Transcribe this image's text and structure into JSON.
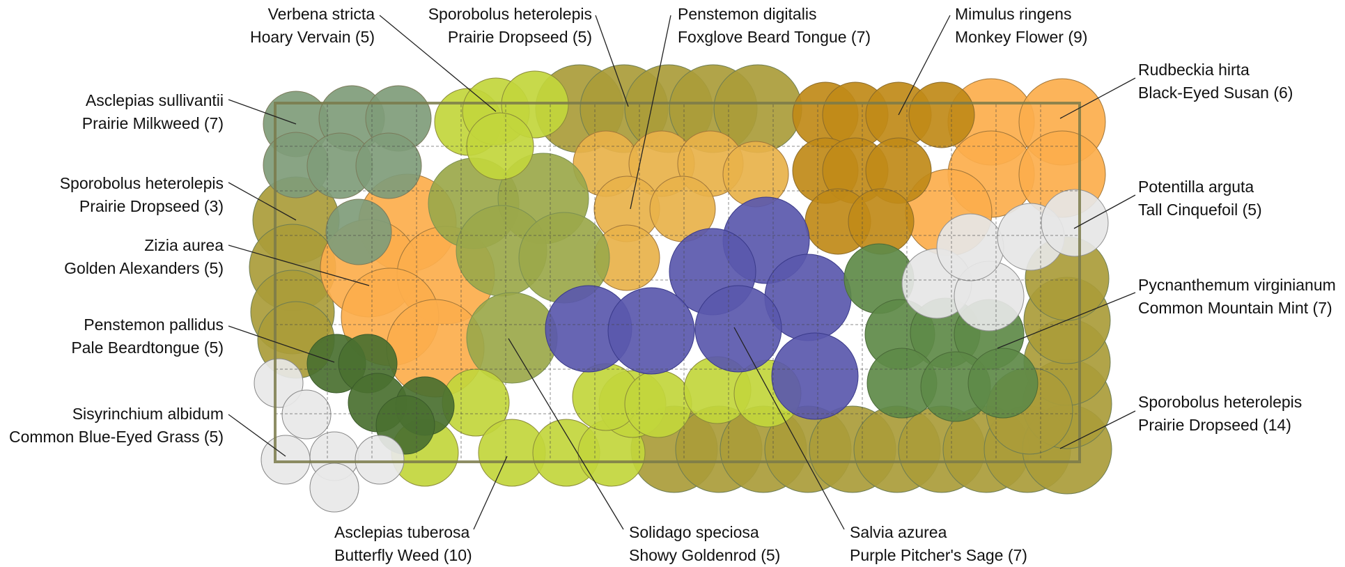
{
  "colors": {
    "milkweed": "#7f9c7a",
    "dropseed": "#aa9c3a",
    "goldenalexanders": "#fcae4c",
    "beardtongue_pale": "#4a7030",
    "blueeyedgrass": "#e8e8e8",
    "butterflyweed": "#c2d63c",
    "goldenrod": "#9ba84a",
    "foxglove": "#e8b24a",
    "pitchersage": "#5a58ad",
    "monkeyflower": "#c08a18",
    "blackeyedsusan": "#fcae4c",
    "cinquefoil": "#e6e6e6",
    "mountainmint": "#5e8a48",
    "label_text": "#111111",
    "leader_line": "#222222"
  },
  "labels": [
    {
      "id": "verbena",
      "botanical": "Verbena stricta",
      "common": "Hoary Vervain (5)"
    },
    {
      "id": "sporobolus-top",
      "botanical": "Sporobolus heterolepis",
      "common": "Prairie Dropseed (5)"
    },
    {
      "id": "penstemon-digitalis",
      "botanical": "Penstemon digitalis",
      "common": "Foxglove Beard Tongue (7)"
    },
    {
      "id": "mimulus",
      "botanical": "Mimulus ringens",
      "common": "Monkey Flower (9)"
    },
    {
      "id": "rudbeckia",
      "botanical": "Rudbeckia hirta",
      "common": "Black-Eyed Susan (6)"
    },
    {
      "id": "asclepias-sullivantii",
      "botanical": "Asclepias sullivantii",
      "common": "Prairie Milkweed  (7)"
    },
    {
      "id": "sporobolus-left",
      "botanical": "Sporobolus heterolepis",
      "common": "Prairie Dropseed (3)"
    },
    {
      "id": "potentilla",
      "botanical": "Potentilla arguta",
      "common": "Tall Cinquefoil (5)"
    },
    {
      "id": "zizia",
      "botanical": "Zizia aurea",
      "common": "Golden Alexanders (5)"
    },
    {
      "id": "pycnanthemum",
      "botanical": "Pycnanthemum virginianum",
      "common": "Common Mountain Mint (7)"
    },
    {
      "id": "penstemon-pallidus",
      "botanical": "Penstemon pallidus",
      "common": "Pale Beardtongue (5)"
    },
    {
      "id": "sporobolus-right",
      "botanical": "Sporobolus heterolepis",
      "common": "Prairie Dropseed (14)"
    },
    {
      "id": "sisyrinchium",
      "botanical": "Sisyrinchium albidum",
      "common": "Common Blue-Eyed Grass (5)"
    },
    {
      "id": "asclepias-tuberosa",
      "botanical": "Asclepias tuberosa",
      "common": "Butterfly Weed (10)"
    },
    {
      "id": "solidago",
      "botanical": "Solidago speciosa",
      "common": "Showy Goldenrod (5)"
    },
    {
      "id": "salvia",
      "botanical": "Salvia azurea",
      "common": "Purple Pitcher's Sage (7)"
    }
  ]
}
